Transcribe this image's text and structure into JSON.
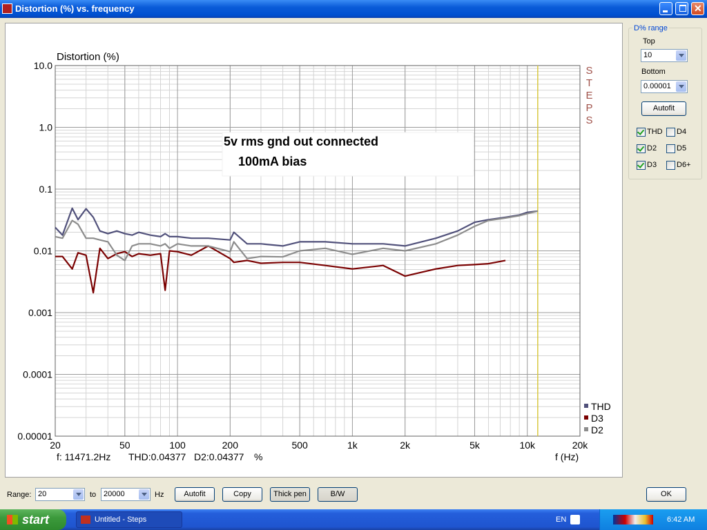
{
  "window": {
    "title": "Distortion (%) vs. frequency"
  },
  "chart_data": {
    "type": "line",
    "y_label": "Distortion (%)",
    "x_label": "f (Hz)",
    "xscale": "log",
    "yscale": "log",
    "grid": true,
    "minor_grid": true,
    "xlim": [
      20,
      20000
    ],
    "ylim": [
      1e-05,
      10
    ],
    "xticks": [
      20,
      50,
      100,
      200,
      500,
      {
        "value": 1000,
        "label": "1k"
      },
      {
        "value": 2000,
        "label": "2k"
      },
      {
        "value": 5000,
        "label": "5k"
      },
      {
        "value": 10000,
        "label": "10k"
      },
      {
        "value": 20000,
        "label": "20k"
      }
    ],
    "yticks": [
      {
        "value": 10,
        "label": "10.0"
      },
      {
        "value": 1,
        "label": "1.0"
      },
      0.1,
      0.01,
      0.001,
      0.0001,
      1e-05
    ],
    "x": [
      20,
      22,
      25,
      27,
      30,
      33,
      36,
      40,
      45,
      50,
      55,
      60,
      70,
      80,
      85,
      90,
      100,
      120,
      150,
      200,
      210,
      250,
      300,
      400,
      500,
      700,
      1000,
      1500,
      2000,
      3000,
      4000,
      5000,
      6000,
      7500,
      9000,
      10000,
      11471
    ],
    "series": [
      {
        "name": "THD",
        "color": "#50507a",
        "values": [
          0.024,
          0.018,
          0.049,
          0.032,
          0.048,
          0.035,
          0.021,
          0.019,
          0.021,
          0.019,
          0.018,
          0.02,
          0.018,
          0.017,
          0.019,
          0.017,
          0.017,
          0.016,
          0.016,
          0.015,
          0.02,
          0.013,
          0.013,
          0.012,
          0.014,
          0.014,
          0.013,
          0.013,
          0.012,
          0.016,
          0.021,
          0.029,
          0.032,
          0.035,
          0.038,
          0.042,
          0.044
        ]
      },
      {
        "name": "D3",
        "color": "#7a0000",
        "values": [
          0.0081,
          0.0081,
          0.0051,
          0.0093,
          0.0085,
          0.0021,
          0.011,
          0.0075,
          0.009,
          0.0097,
          0.0081,
          0.009,
          0.0085,
          0.009,
          0.0023,
          0.01,
          0.0097,
          0.0085,
          0.012,
          0.0075,
          0.0065,
          0.007,
          0.0063,
          0.0065,
          0.0065,
          0.0058,
          0.0051,
          0.0058,
          0.0039,
          0.0051,
          0.0058,
          0.006,
          0.0062,
          0.007,
          null,
          null,
          null
        ]
      },
      {
        "name": "D2",
        "color": "#8c8c8c",
        "values": [
          0.017,
          0.016,
          0.031,
          0.027,
          0.016,
          0.016,
          0.015,
          0.014,
          0.0085,
          0.007,
          0.012,
          0.013,
          0.013,
          0.012,
          0.013,
          0.011,
          0.013,
          0.012,
          0.012,
          0.0097,
          0.014,
          0.0075,
          0.0081,
          0.008,
          0.01,
          0.011,
          0.0088,
          0.011,
          0.01,
          0.013,
          0.018,
          0.025,
          0.031,
          0.034,
          0.037,
          0.04,
          0.044
        ]
      }
    ],
    "annotations": [
      "5v rms gnd out connected",
      "100mA bias"
    ],
    "brand": "STEPS",
    "cursor_x": 11471.2,
    "cursor_color": "#d8c840",
    "readout": [
      "f: 11471.2Hz",
      "THD:0.04377",
      "D2:0.04377",
      "%"
    ]
  },
  "side_panel": {
    "group_title": "D% range",
    "top_label": "Top",
    "top_value": "10",
    "bottom_label": "Bottom",
    "bottom_value": "0.00001",
    "autofit": "Autofit",
    "checkboxes": [
      {
        "label": "THD",
        "checked": true
      },
      {
        "label": "D4",
        "checked": false
      },
      {
        "label": "D2",
        "checked": true
      },
      {
        "label": "D5",
        "checked": false
      },
      {
        "label": "D3",
        "checked": true
      },
      {
        "label": "D6+",
        "checked": false
      }
    ]
  },
  "bottom_bar": {
    "range_label": "Range:",
    "from": "20",
    "to_label": "to",
    "to": "20000",
    "unit": "Hz",
    "buttons": [
      "Autofit",
      "Copy",
      "Thick pen",
      "B/W"
    ],
    "ok": "OK"
  },
  "taskbar": {
    "start": "start",
    "task": "Untitled - Steps",
    "lang": "EN",
    "time": "6:42 AM"
  }
}
